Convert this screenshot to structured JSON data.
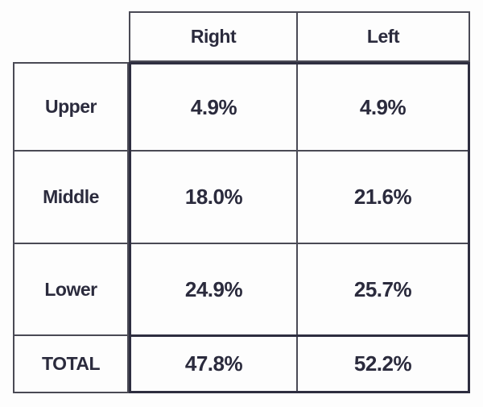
{
  "table": {
    "col_headers": [
      "Right",
      "Left"
    ],
    "rows": [
      {
        "label": "Upper",
        "right": "4.9%",
        "left": "4.9%"
      },
      {
        "label": "Middle",
        "right": "18.0%",
        "left": "21.6%"
      },
      {
        "label": "Lower",
        "right": "24.9%",
        "left": "25.7%"
      },
      {
        "label": "TOTAL",
        "right": "47.8%",
        "left": "52.2%"
      }
    ]
  },
  "chart_data": {
    "type": "table",
    "row_labels": [
      "Upper",
      "Middle",
      "Lower",
      "TOTAL"
    ],
    "columns": [
      "Right",
      "Left"
    ],
    "series": [
      {
        "name": "Right",
        "values": [
          4.9,
          18.0,
          24.9,
          47.8
        ]
      },
      {
        "name": "Left",
        "values": [
          4.9,
          21.6,
          25.7,
          52.2
        ]
      }
    ],
    "unit": "%"
  },
  "colors": {
    "border_thin": "#4a4a55",
    "border_thick": "#2e2e40",
    "text": "#2b2b3d",
    "background": "#fdfdfd"
  }
}
